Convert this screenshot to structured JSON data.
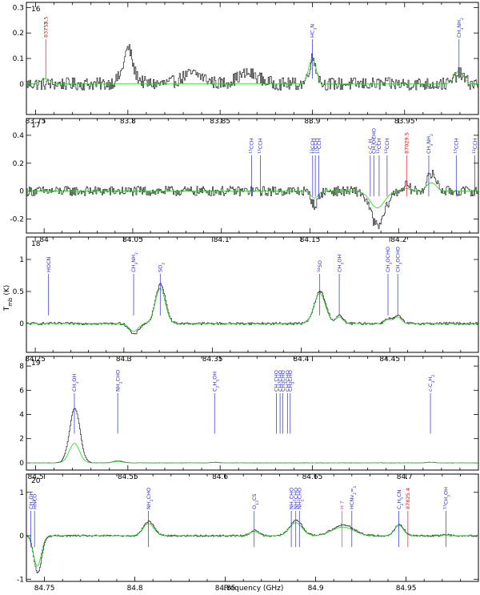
{
  "colors": {
    "observed": "#000000",
    "model": "#1fd41f",
    "label_identified": "#2a2ad8",
    "label_unidentified": "#e0141e",
    "label_uncertain": "#c040c0"
  },
  "xlabel": "Frequency (GHz)",
  "ylabel": "T_mb (K)",
  "chart_data": [
    {
      "type": "line",
      "panel": "16",
      "xlim": [
        83.745,
        83.99
      ],
      "ylim": [
        -0.12,
        0.32
      ],
      "xticks": [
        {
          "v": 83.75,
          "t": "83.75"
        },
        {
          "v": 83.8,
          "t": "83.8"
        },
        {
          "v": 83.85,
          "t": "83.85"
        },
        {
          "v": 83.9,
          "t": "83.9"
        },
        {
          "v": 83.95,
          "t": "83.95"
        }
      ],
      "yticks": [
        {
          "v": 0,
          "t": "0"
        },
        {
          "v": 0.1,
          "t": "0.1"
        },
        {
          "v": 0.2,
          "t": "0.2"
        },
        {
          "v": 0.3,
          "t": "0.3"
        }
      ],
      "noise": 0.025,
      "humps": [
        [
          83.8,
          0.06,
          0.004
        ],
        [
          83.835,
          0.04,
          0.006
        ],
        [
          83.865,
          0.04,
          0.006
        ]
      ],
      "features": [
        {
          "x": 83.7555,
          "obs": 0.0,
          "model": 0.02,
          "w": 0.0025
        },
        {
          "x": 83.8,
          "obs": 0.08,
          "model": 0.0,
          "w": 0.0018
        },
        {
          "x": 83.9,
          "obs": 0.1,
          "model": 0.1,
          "w": 0.002
        },
        {
          "x": 83.9795,
          "obs": 0.04,
          "model": 0.05,
          "w": 0.0025
        }
      ],
      "labels": [
        {
          "x": 83.7555,
          "text": "83755.",
          "extra": "2.5",
          "kind": "unidentified"
        },
        {
          "x": 83.9,
          "text": "HC3N",
          "kind": "identified"
        },
        {
          "x": 83.9795,
          "text": "CH3NH2",
          "kind": "identified"
        }
      ]
    },
    {
      "type": "line",
      "panel": "17",
      "xlim": [
        83.99,
        84.245
      ],
      "ylim": [
        -0.3,
        0.52
      ],
      "xticks": [
        {
          "v": 84.0,
          "t": "84"
        },
        {
          "v": 84.05,
          "t": "84.05"
        },
        {
          "v": 84.1,
          "t": "84.1"
        },
        {
          "v": 84.15,
          "t": "84.15"
        },
        {
          "v": 84.2,
          "t": "84.2"
        }
      ],
      "yticks": [
        {
          "v": -0.2,
          "t": "-0.2"
        },
        {
          "v": 0,
          "t": "0"
        },
        {
          "v": 0.2,
          "t": "0.2"
        },
        {
          "v": 0.4,
          "t": "0.4"
        }
      ],
      "noise": 0.035,
      "humps": [],
      "features": [
        {
          "x": 84.1525,
          "obs": -0.1,
          "model": -0.05,
          "w": 0.002
        },
        {
          "x": 84.188,
          "obs": -0.25,
          "model": -0.12,
          "w": 0.004
        },
        {
          "x": 84.217,
          "obs": 0.08,
          "model": 0.04,
          "w": 0.002
        },
        {
          "x": 84.22,
          "obs": 0.08,
          "model": 0.04,
          "w": 0.002
        },
        {
          "x": 84.204,
          "obs": 0.04,
          "model": 0.02,
          "w": 0.002
        }
      ],
      "labels": [
        {
          "x": 84.117,
          "text": "13CCH",
          "kind": "identified"
        },
        {
          "x": 84.122,
          "text": "13CCH",
          "kind": "identified"
        },
        {
          "x": 84.1515,
          "text": "13CCH",
          "kind": "identified"
        },
        {
          "x": 84.153,
          "text": "13CCH",
          "kind": "identified"
        },
        {
          "x": 84.155,
          "text": "13CCH",
          "kind": "identified"
        },
        {
          "x": 84.184,
          "text": "c-C3H2",
          "kind": "identified"
        },
        {
          "x": 84.186,
          "text": "CH3OCHO",
          "kind": "identified"
        },
        {
          "x": 84.189,
          "text": "13CCH",
          "kind": "identified"
        },
        {
          "x": 84.1935,
          "text": "13CCH",
          "kind": "identified"
        },
        {
          "x": 84.2045,
          "text": "87029.5",
          "kind": "unidentified"
        },
        {
          "x": 84.217,
          "text": "CH3NH2",
          "kind": "identified"
        },
        {
          "x": 84.2325,
          "text": "13CCH",
          "kind": "identified"
        },
        {
          "x": 84.243,
          "text": "13CCH",
          "kind": "identified"
        }
      ]
    },
    {
      "type": "line",
      "panel": "18",
      "xlim": [
        84.245,
        84.5
      ],
      "ylim": [
        -0.45,
        1.35
      ],
      "xticks": [
        {
          "v": 84.25,
          "t": "84.25"
        },
        {
          "v": 84.3,
          "t": "84.3"
        },
        {
          "v": 84.35,
          "t": "84.35"
        },
        {
          "v": 84.4,
          "t": "84.4"
        },
        {
          "v": 84.45,
          "t": "84.45"
        }
      ],
      "yticks": [
        {
          "v": 0,
          "t": "0"
        },
        {
          "v": 0.5,
          "t": "0.5"
        },
        {
          "v": 1,
          "t": "1"
        }
      ],
      "noise": 0.018,
      "humps": [],
      "features": [
        {
          "x": 84.3055,
          "obs": -0.17,
          "model": -0.12,
          "w": 0.0025
        },
        {
          "x": 84.3205,
          "obs": 0.62,
          "model": 0.55,
          "w": 0.0028
        },
        {
          "x": 84.4105,
          "obs": 0.5,
          "model": 0.47,
          "w": 0.0032
        },
        {
          "x": 84.4215,
          "obs": 0.12,
          "model": 0.1,
          "w": 0.002
        },
        {
          "x": 84.449,
          "obs": 0.08,
          "model": 0.06,
          "w": 0.002
        },
        {
          "x": 84.4545,
          "obs": 0.12,
          "model": 0.1,
          "w": 0.002
        }
      ],
      "labels": [
        {
          "x": 84.2575,
          "text": "HOCN",
          "kind": "identified"
        },
        {
          "x": 84.3055,
          "text": "CH3NH2",
          "kind": "identified"
        },
        {
          "x": 84.3205,
          "text": "SO2",
          "kind": "identified"
        },
        {
          "x": 84.4105,
          "text": "34SO",
          "kind": "identified"
        },
        {
          "x": 84.4215,
          "text": "CH3OH",
          "kind": "identified"
        },
        {
          "x": 84.449,
          "text": "CH3OCHO",
          "kind": "identified"
        },
        {
          "x": 84.4545,
          "text": "CH3OCHO",
          "kind": "identified"
        }
      ]
    },
    {
      "type": "line",
      "panel": "19",
      "xlim": [
        84.495,
        84.74
      ],
      "ylim": [
        -0.6,
        8.8
      ],
      "xticks": [
        {
          "v": 84.5,
          "t": "84.5"
        },
        {
          "v": 84.55,
          "t": "84.55"
        },
        {
          "v": 84.6,
          "t": "84.6"
        },
        {
          "v": 84.65,
          "t": "84.65"
        },
        {
          "v": 84.7,
          "t": "84.7"
        }
      ],
      "yticks": [
        {
          "v": 0,
          "t": "0"
        },
        {
          "v": 2,
          "t": "2"
        },
        {
          "v": 4,
          "t": "4"
        },
        {
          "v": 6,
          "t": "6"
        },
        {
          "v": 8,
          "t": "8"
        }
      ],
      "noise": 0.015,
      "humps": [],
      "features": [
        {
          "x": 84.521,
          "obs": 4.5,
          "model": 1.6,
          "w": 0.0028
        },
        {
          "x": 84.5445,
          "obs": 0.15,
          "model": 0.12,
          "w": 0.0025
        },
        {
          "x": 84.597,
          "obs": 0.05,
          "model": 0.03,
          "w": 0.002
        },
        {
          "x": 84.714,
          "obs": 0.05,
          "model": 0.04,
          "w": 0.002
        }
      ],
      "labels": [
        {
          "x": 84.521,
          "text": "CH3OH",
          "kind": "identified"
        },
        {
          "x": 84.5445,
          "text": "NH2CHO",
          "kind": "identified"
        },
        {
          "x": 84.597,
          "text": "C2H5OH",
          "kind": "identified"
        },
        {
          "x": 84.6305,
          "text": "CH3CHO",
          "kind": "identified"
        },
        {
          "x": 84.6325,
          "text": "CH3CHO",
          "kind": "identified"
        },
        {
          "x": 84.634,
          "text": "CH3CHO",
          "kind": "identified"
        },
        {
          "x": 84.6365,
          "text": "CH3CHO",
          "kind": "identified"
        },
        {
          "x": 84.638,
          "text": "CH3CHO",
          "kind": "identified"
        },
        {
          "x": 84.714,
          "text": "c-C3H2",
          "kind": "identified"
        }
      ]
    },
    {
      "type": "line",
      "panel": "20",
      "xlim": [
        84.74,
        84.99
      ],
      "ylim": [
        -1.05,
        1.42
      ],
      "xticks": [
        {
          "v": 84.75,
          "t": "84.75"
        },
        {
          "v": 84.8,
          "t": "84.8"
        },
        {
          "v": 84.85,
          "t": "84.85"
        },
        {
          "v": 84.9,
          "t": "84.9"
        },
        {
          "v": 84.95,
          "t": "84.95"
        }
      ],
      "yticks": [
        {
          "v": -1,
          "t": "-1"
        },
        {
          "v": 0,
          "t": "0"
        },
        {
          "v": 1,
          "t": "1"
        }
      ],
      "noise": 0.02,
      "humps": [],
      "features": [
        {
          "x": 84.7425,
          "obs": 0.05,
          "model": 0.03,
          "w": 0.0015
        },
        {
          "x": 84.746,
          "obs": -0.85,
          "model": -0.7,
          "w": 0.0022
        },
        {
          "x": 84.8075,
          "obs": 0.33,
          "model": 0.28,
          "w": 0.003
        },
        {
          "x": 84.866,
          "obs": 0.12,
          "model": 0.1,
          "w": 0.0025
        },
        {
          "x": 84.889,
          "obs": 0.35,
          "model": 0.3,
          "w": 0.0035
        },
        {
          "x": 84.915,
          "obs": 0.25,
          "model": 0.2,
          "w": 0.006
        },
        {
          "x": 84.946,
          "obs": 0.26,
          "model": 0.24,
          "w": 0.0025
        },
        {
          "x": 84.972,
          "obs": 0.03,
          "model": 0.02,
          "w": 0.002
        }
      ],
      "labels": [
        {
          "x": 84.7425,
          "text": "CH3OH",
          "kind": "identified"
        },
        {
          "x": 84.7445,
          "text": "HNCO",
          "kind": "identified"
        },
        {
          "x": 84.8075,
          "text": "NH2CHO",
          "kind": "identified"
        },
        {
          "x": 84.866,
          "text": "O13CS",
          "kind": "identified"
        },
        {
          "x": 84.8865,
          "text": "NH2CHO",
          "kind": "identified"
        },
        {
          "x": 84.889,
          "text": "NH2CHO",
          "kind": "identified"
        },
        {
          "x": 84.891,
          "text": "NH2CHO",
          "kind": "identified"
        },
        {
          "x": 84.9145,
          "text": "H ?",
          "kind": "uncertain"
        },
        {
          "x": 84.92,
          "text": "HCNv2=1",
          "kind": "identified"
        },
        {
          "x": 84.946,
          "text": "C2H5CN",
          "kind": "identified"
        },
        {
          "x": 84.951,
          "text": "87825.4",
          "kind": "unidentified"
        },
        {
          "x": 84.972,
          "text": "13CH3OH",
          "kind": "identified"
        }
      ]
    }
  ]
}
